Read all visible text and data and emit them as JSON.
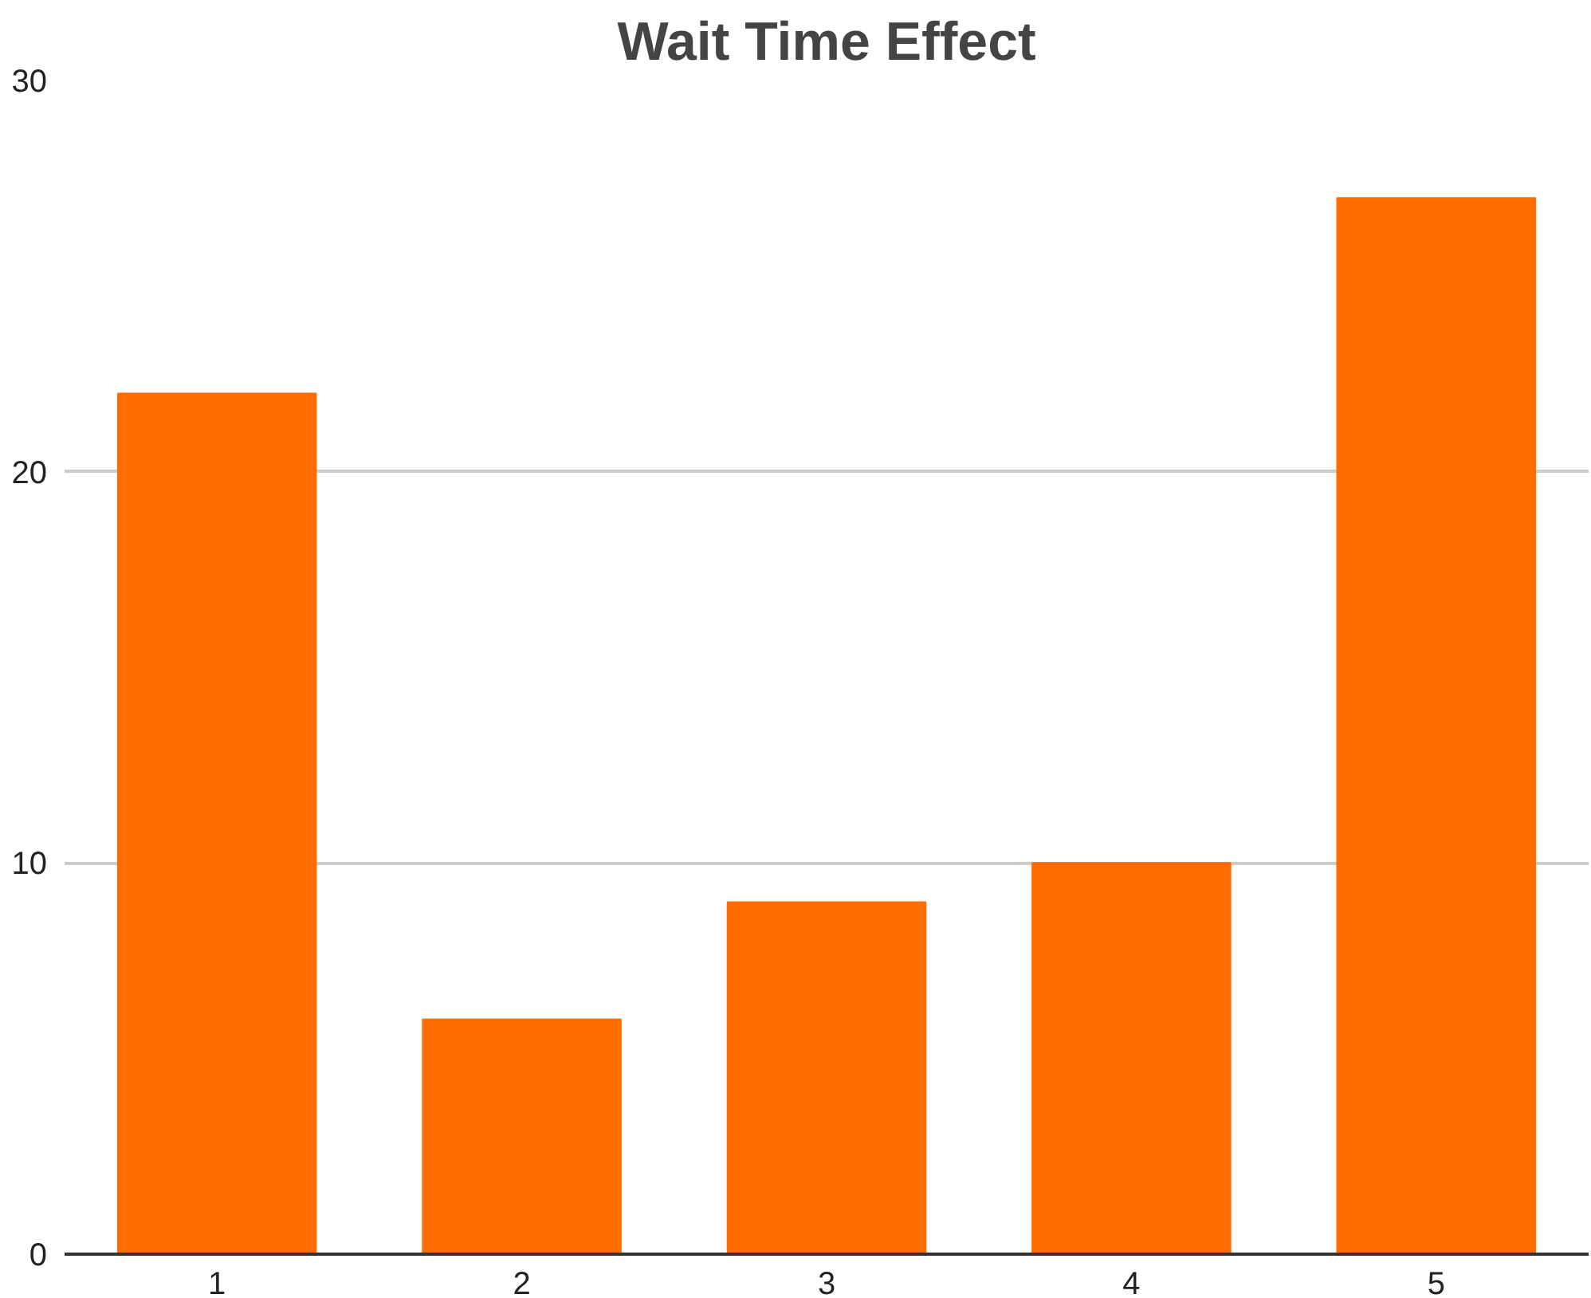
{
  "chart_data": {
    "type": "bar",
    "title": "Wait Time Effect",
    "categories": [
      "1",
      "2",
      "3",
      "4",
      "5"
    ],
    "values": [
      22,
      6,
      9,
      10,
      27
    ],
    "color": "#ff6d01",
    "ylim": [
      0,
      30
    ],
    "yticks": [
      0,
      10,
      20,
      30
    ],
    "grid": "y"
  }
}
